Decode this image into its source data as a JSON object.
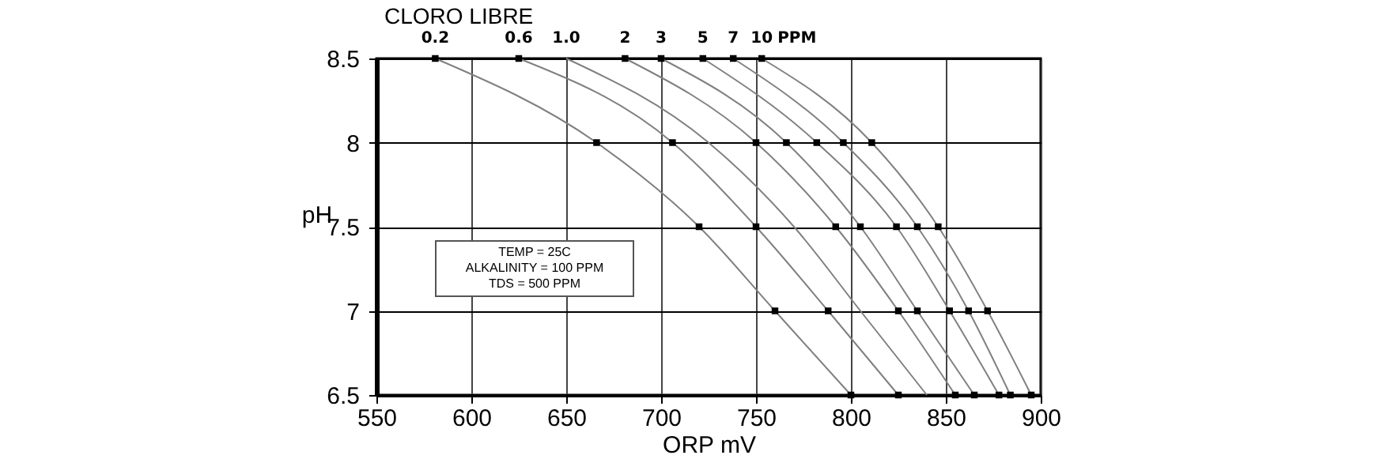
{
  "chart_data": {
    "type": "line",
    "title": "CLORO LIBRE",
    "xlabel": "ORP mV",
    "ylabel": "pH",
    "annotations": [
      "PPM",
      "TEMP = 25C",
      "ALKALINITY = 100 PPM",
      "TDS = 500 PPM"
    ],
    "series": [
      {
        "name": "0.2",
        "color": "#808080",
        "x": [
          581,
          666,
          720,
          760,
          800
        ],
        "values": [
          8.5,
          8,
          7.5,
          7,
          6.5
        ]
      },
      {
        "name": "0.6",
        "color": "#808080",
        "x": [
          625,
          706,
          750,
          788,
          825
        ],
        "values": [
          8.5,
          8,
          7.5,
          7,
          6.5
        ]
      },
      {
        "name": "1.0",
        "color": "#808080",
        "marker": "none",
        "x": [
          650,
          725,
          770,
          805,
          840
        ],
        "values": [
          8.5,
          8,
          7.5,
          7,
          6.5
        ]
      },
      {
        "name": "2",
        "color": "#808080",
        "x": [
          681,
          750,
          792,
          825,
          855
        ],
        "values": [
          8.5,
          8,
          7.5,
          7,
          6.5
        ]
      },
      {
        "name": "3",
        "color": "#808080",
        "x": [
          700,
          766,
          805,
          835,
          865
        ],
        "values": [
          8.5,
          8,
          7.5,
          7,
          6.5
        ]
      },
      {
        "name": "5",
        "color": "#808080",
        "x": [
          722,
          782,
          824,
          852,
          878
        ],
        "values": [
          8.5,
          8,
          7.5,
          7,
          6.5
        ]
      },
      {
        "name": "7",
        "color": "#808080",
        "x": [
          738,
          796,
          835,
          862,
          884
        ],
        "values": [
          8.5,
          8,
          7.5,
          7,
          6.5
        ]
      },
      {
        "name": "10",
        "color": "#808080",
        "x": [
          753,
          811,
          846,
          872,
          895
        ],
        "values": [
          8.5,
          8,
          7.5,
          7,
          6.5
        ]
      }
    ],
    "xlim": [
      550,
      900
    ],
    "xticks": [
      550,
      600,
      650,
      700,
      750,
      800,
      850,
      900
    ],
    "ylim": [
      6.5,
      8.5
    ],
    "yticks": [
      6.5,
      7,
      7.5,
      8,
      8.5
    ],
    "grid": true,
    "legend": false,
    "marker": "square",
    "line_style": "solid"
  }
}
